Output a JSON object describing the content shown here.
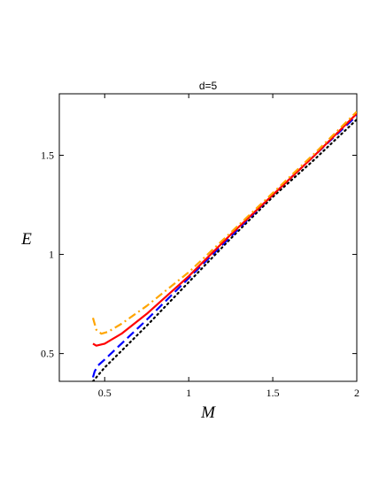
{
  "chart_data": {
    "type": "line",
    "title": "d=5",
    "xlabel": "M",
    "ylabel": "E",
    "xlim": [
      0.23,
      2.0
    ],
    "ylim": [
      0.36,
      1.81
    ],
    "xticks": [
      0.5,
      1,
      1.5,
      2
    ],
    "xtick_labels": [
      "0.5",
      "1",
      "1.5",
      "2"
    ],
    "yticks": [
      0.5,
      1,
      1.5
    ],
    "ytick_labels": [
      "0.5",
      "1",
      "1.5"
    ],
    "grid": false,
    "legend": "none",
    "series": [
      {
        "color": "#000000",
        "style": "dotted",
        "x": [
          0.43,
          0.5,
          0.75,
          1.0,
          1.25,
          1.5,
          1.75,
          2.0
        ],
        "y": [
          0.36,
          0.43,
          0.64,
          0.86,
          1.08,
          1.29,
          1.48,
          1.68
        ]
      },
      {
        "color": "#0000ff",
        "style": "dashed",
        "x": [
          0.43,
          0.44,
          0.46,
          0.5,
          0.6,
          0.75,
          1.0,
          1.25,
          1.5,
          1.75,
          2.0
        ],
        "y": [
          0.38,
          0.41,
          0.44,
          0.47,
          0.55,
          0.67,
          0.88,
          1.09,
          1.3,
          1.5,
          1.7
        ]
      },
      {
        "color": "#ff0000",
        "style": "solid",
        "x": [
          0.43,
          0.45,
          0.5,
          0.6,
          0.75,
          1.0,
          1.25,
          1.5,
          1.75,
          2.0
        ],
        "y": [
          0.55,
          0.54,
          0.55,
          0.6,
          0.7,
          0.89,
          1.1,
          1.3,
          1.5,
          1.71
        ]
      },
      {
        "color": "#ffa500",
        "style": "dashdot",
        "x": [
          0.43,
          0.45,
          0.48,
          0.52,
          0.6,
          0.75,
          1.0,
          1.25,
          1.5,
          1.75,
          2.0
        ],
        "y": [
          0.68,
          0.62,
          0.6,
          0.61,
          0.65,
          0.74,
          0.91,
          1.11,
          1.31,
          1.51,
          1.72
        ]
      }
    ]
  }
}
